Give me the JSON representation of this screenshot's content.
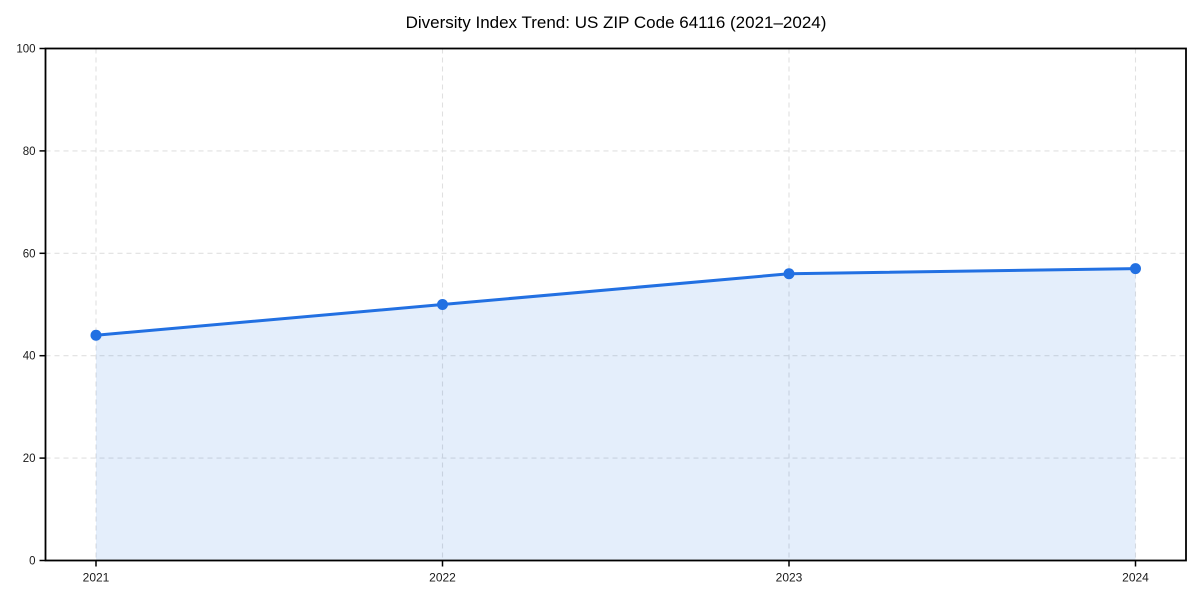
{
  "chart_data": {
    "type": "line",
    "title": "Diversity Index Trend: US ZIP Code 64116 (2021–2024)",
    "x": [
      "2021",
      "2022",
      "2023",
      "2024"
    ],
    "series": [
      {
        "name": "Diversity Index",
        "values": [
          44,
          50,
          56,
          57
        ]
      }
    ],
    "xlabel": "",
    "ylabel": "",
    "ylim": [
      0,
      100
    ],
    "yticks": [
      0,
      20,
      40,
      60,
      80,
      100
    ],
    "grid": true,
    "grid_style": "dashed",
    "legend": "none",
    "area_fill": true,
    "markers": true,
    "colors": {
      "line": "#2270e2",
      "fill": "rgba(34,112,226,0.12)",
      "grid": "#e0e0e0",
      "axis": "#000000",
      "tick_label": "#1a1a1a",
      "background": "#ffffff"
    }
  }
}
